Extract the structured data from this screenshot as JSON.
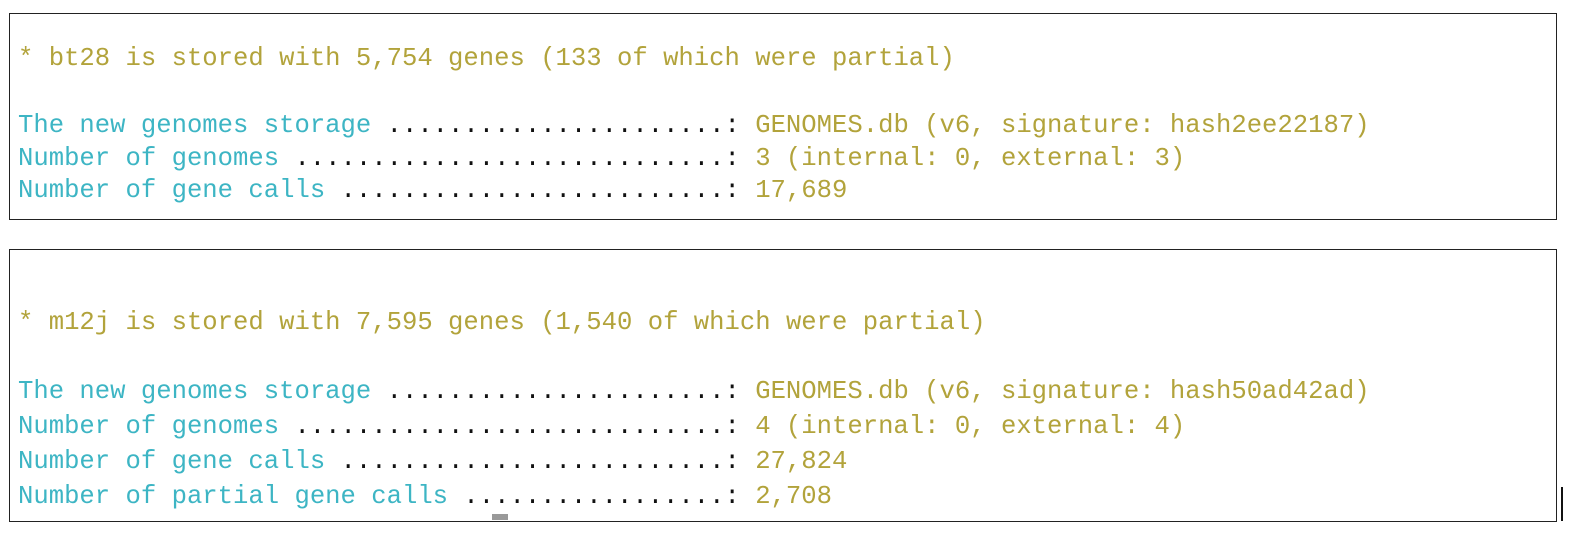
{
  "panels": [
    {
      "header": "* bt28 is stored with 5,754 genes (133 of which were partial)",
      "rows": [
        {
          "label": "The new genomes storage",
          "leader": "......................:",
          "value": "GENOMES.db (v6, signature: hash2ee22187)"
        },
        {
          "label": "Number of genomes",
          "leader": "............................:",
          "value": "3 (internal: 0, external: 3)"
        },
        {
          "label": "Number of gene calls",
          "leader": ".........................:",
          "value": "17,689"
        }
      ]
    },
    {
      "header": "* m12j is stored with 7,595 genes (1,540 of which were partial)",
      "rows": [
        {
          "label": "The new genomes storage",
          "leader": "......................:",
          "value": "GENOMES.db (v6, signature: hash50ad42ad)"
        },
        {
          "label": "Number of genomes",
          "leader": "............................:",
          "value": "4 (internal: 0, external: 4)"
        },
        {
          "label": "Number of gene calls",
          "leader": ".........................:",
          "value": "27,824"
        },
        {
          "label": "Number of partial gene calls",
          "leader": ".................:",
          "value": "2,708"
        }
      ]
    }
  ]
}
